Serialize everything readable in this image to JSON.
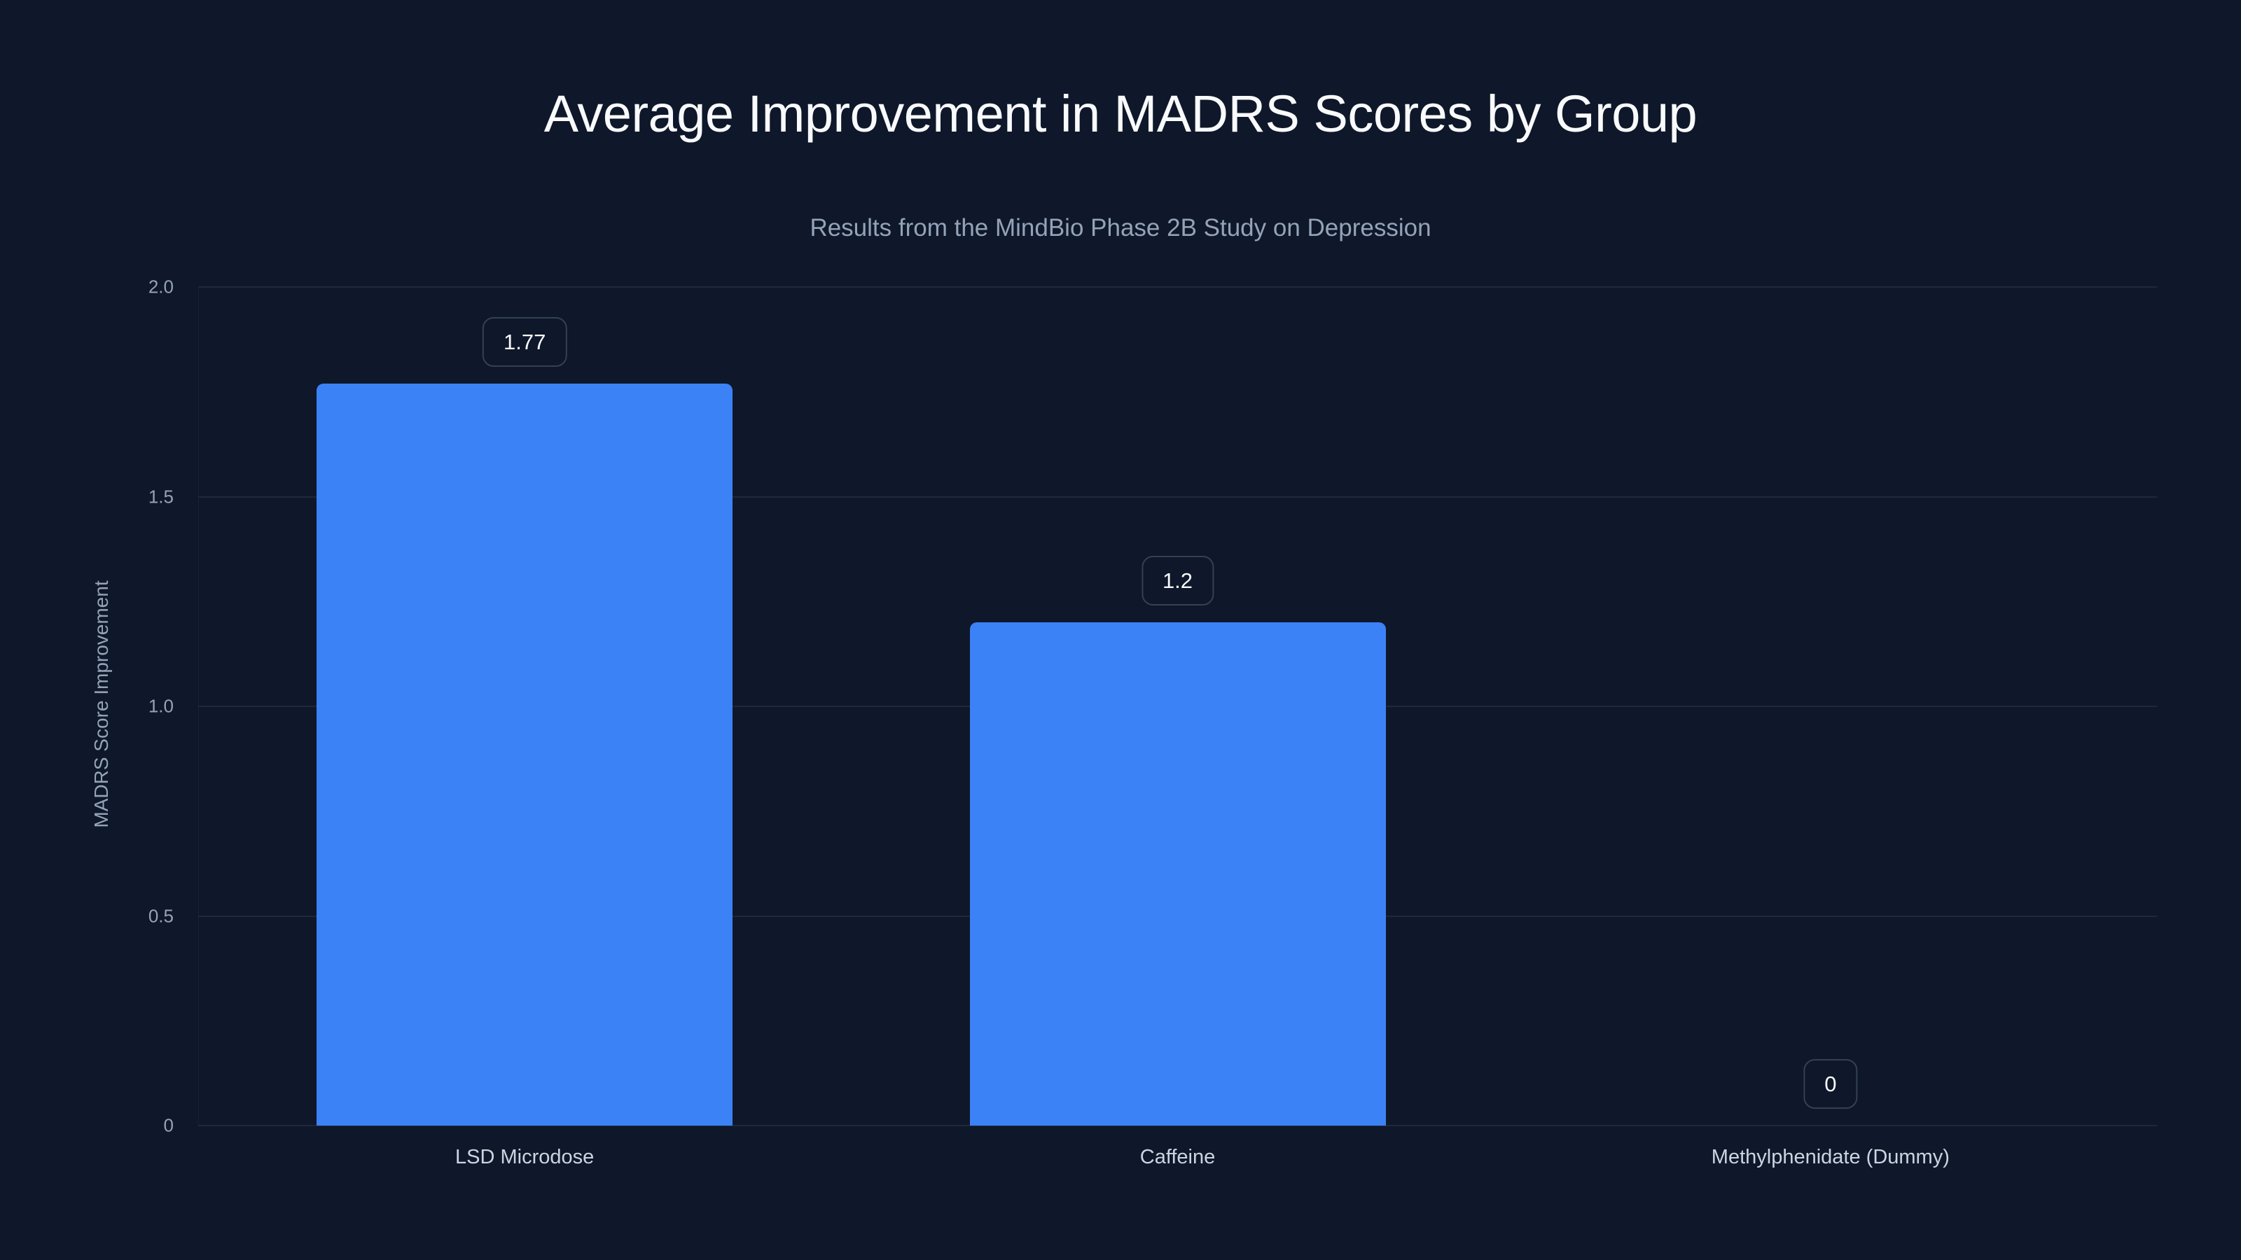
{
  "chart_data": {
    "type": "bar",
    "title": "Average Improvement in MADRS Scores by Group",
    "subtitle": "Results from the MindBio Phase 2B Study on Depression",
    "xlabel": "",
    "ylabel": "MADRS Score Improvement",
    "categories": [
      "LSD Microdose",
      "Caffeine",
      "Methylphenidate (Dummy)"
    ],
    "values": [
      1.77,
      1.2,
      0
    ],
    "value_labels": [
      "1.77",
      "1.2",
      "0"
    ],
    "ylim": [
      0,
      2.0
    ],
    "yticks": [
      "0",
      "0.5",
      "1.0",
      "1.5",
      "2.0"
    ],
    "grid": true,
    "legend": null,
    "colors": {
      "background": "#0f172a",
      "bar": "#3b82f6",
      "grid": "#1e293b",
      "title": "#f8fafc",
      "subtitle": "#94a3b8",
      "tick": "#94a3b8",
      "category_label": "#cbd5e1",
      "label_border": "#334155"
    }
  }
}
